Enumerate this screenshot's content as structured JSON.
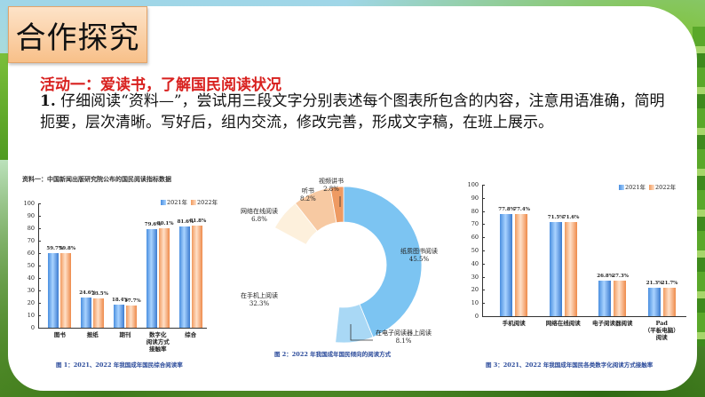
{
  "slide": {
    "section_title": "合作探究",
    "activity_heading": "活动一：爱读书，了解国民阅读状况",
    "instruction_number": "1.",
    "instruction_text": " 仔细阅读“资料—”，尝试用三段文字分别表述每个图表所包含的内容，注意用语准确，简明扼要，层次清晰。写好后，组内交流，修改完善，形成文字稿，在班上展示。"
  },
  "colors": {
    "accent_red": "#d8201e",
    "series_2021": "#4a8fe0",
    "series_2022": "#f19a5e",
    "caption_blue": "#2a4a9a",
    "title_box_orange": "#f8c089"
  },
  "chart_data": [
    {
      "type": "bar",
      "title": "资料一：中国新闻出版研究院公布的国民阅读指标数据",
      "caption": "图 1：2021、2022 年我国成年国民综合阅读率",
      "categories": [
        "图书",
        "报纸",
        "期刊",
        "数字化阅读方式接触率",
        "综合"
      ],
      "category_labels": [
        "图书",
        "报纸",
        "期刊",
        "数字化\n阅读方式\n接触率",
        "综合"
      ],
      "series": [
        {
          "name": "2021年",
          "values": [
            59.7,
            24.6,
            18.4,
            79.6,
            81.6
          ],
          "labels": [
            "59.7%",
            "24.6%",
            "18.4%",
            "79.6%",
            "81.6%"
          ]
        },
        {
          "name": "2022年",
          "values": [
            59.8,
            23.5,
            17.7,
            80.1,
            81.8
          ],
          "labels": [
            "59.8%",
            "23.5%",
            "17.7%",
            "80.1%",
            "81.8%"
          ]
        }
      ],
      "yticks": [
        "0",
        "10",
        "20",
        "30",
        "40",
        "50",
        "60",
        "70",
        "80",
        "90",
        "100"
      ],
      "ylim": [
        0,
        100
      ],
      "legend": [
        "2021年",
        "2022年"
      ],
      "legend_position": "top-right",
      "grid": false
    },
    {
      "type": "pie",
      "style": "donut",
      "caption": "图 2：2022 年我国成年国民倾向的阅读方式",
      "slices": [
        {
          "label": "纸质图书阅读",
          "value": 45.5,
          "text": "45.5%",
          "color": "#7cc4f2"
        },
        {
          "label": "在电子阅读器上阅读",
          "value": 8.1,
          "text": "8.1%",
          "color": "#a9d8f5"
        },
        {
          "label": "在手机上阅读",
          "value": 32.3,
          "text": "32.3%",
          "color": "#ffffff"
        },
        {
          "label": "网络在线阅读",
          "value": 6.8,
          "text": "6.8%",
          "color": "#fdf0dc"
        },
        {
          "label": "听书",
          "value": 8.2,
          "text": "8.2%",
          "color": "#f7c9a2"
        },
        {
          "label": "视频讲书",
          "value": 2.8,
          "text": "2.8%",
          "color": "#ee9a62"
        }
      ]
    },
    {
      "type": "bar",
      "caption": "图 3：2021、2022 年我国成年国民各类数字化阅读方式接触率",
      "categories": [
        "手机阅读",
        "网络在线阅读",
        "电子阅读器阅读",
        "Pad（平板电脑）阅读"
      ],
      "category_labels": [
        "手机阅读",
        "网络在线阅读",
        "电子阅读器阅读",
        "Pad\n（平板电脑）\n阅读"
      ],
      "series": [
        {
          "name": "2021年",
          "values": [
            77.8,
            71.5,
            26.8,
            21.3
          ],
          "labels": [
            "77.8%",
            "71.5%",
            "26.8%",
            "21.3%"
          ]
        },
        {
          "name": "2022年",
          "values": [
            77.4,
            71.6,
            27.3,
            21.7
          ],
          "labels": [
            "77.4%",
            "71.6%",
            "27.3%",
            "21.7%"
          ]
        }
      ],
      "yticks": [
        "0",
        "10",
        "20",
        "30",
        "40",
        "50",
        "60",
        "70",
        "80",
        "90",
        "100"
      ],
      "ylim": [
        0,
        100
      ],
      "legend": [
        "2021年",
        "2022年"
      ],
      "legend_position": "top-right",
      "grid": false
    }
  ]
}
